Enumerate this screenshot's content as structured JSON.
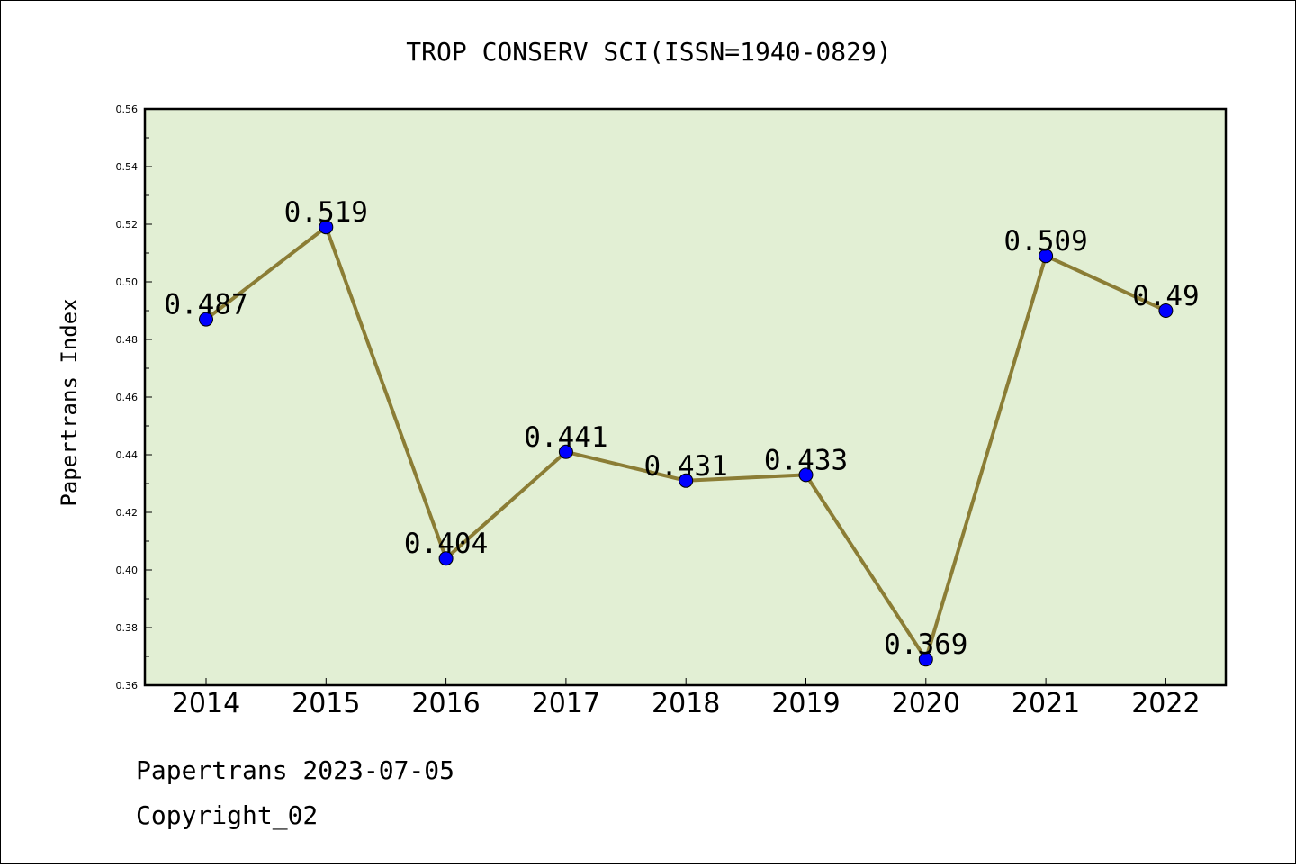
{
  "chart_data": {
    "type": "line",
    "title": "TROP CONSERV SCI(ISSN=1940-0829)",
    "ylabel": "Papertrans Index",
    "xlabel": "",
    "x": [
      "2014",
      "2015",
      "2016",
      "2017",
      "2018",
      "2019",
      "2020",
      "2021",
      "2022"
    ],
    "series": [
      {
        "values": [
          0.487,
          0.519,
          0.404,
          0.441,
          0.431,
          0.433,
          0.369,
          0.509,
          0.49
        ],
        "labels": [
          "0.487",
          "0.519",
          "0.404",
          "0.441",
          "0.431",
          "0.433",
          "0.369",
          "0.509",
          "0.49"
        ]
      }
    ],
    "ylim": [
      0.36,
      0.56
    ],
    "yticks": [
      "0.36",
      "0.38",
      "0.40",
      "0.42",
      "0.44",
      "0.46",
      "0.48",
      "0.50",
      "0.52",
      "0.54",
      "0.56"
    ],
    "grid": false,
    "colors": {
      "plot_bg": "#e2efd4",
      "line": "#8b7d35",
      "marker": "#0000ff"
    }
  },
  "footer": {
    "line1": "Papertrans 2023-07-05",
    "line2": "Copyright_02"
  }
}
